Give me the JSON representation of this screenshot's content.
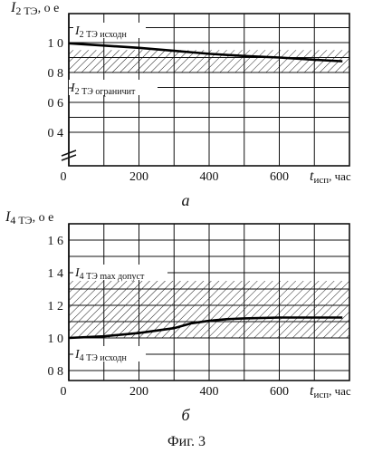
{
  "chart_data": [
    {
      "type": "line",
      "panel_label": "а",
      "ylabel": {
        "main": "I",
        "sub": "2 ТЭ",
        "suffix": ", о е"
      },
      "xlabel": {
        "main": "t",
        "sub": "исп",
        "suffix": ", час"
      },
      "xlim": [
        0,
        800
      ],
      "ylim": [
        0.2,
        1.0
      ],
      "xticks": [
        0,
        200,
        400,
        600
      ],
      "xtick_labels": [
        "0",
        "200",
        "400",
        "600"
      ],
      "yticks": [
        1.0,
        0.8,
        0.6,
        0.4
      ],
      "ytick_labels": [
        "1 0",
        "0 8",
        "0 6",
        "0 4"
      ],
      "axis_break": true,
      "hatched_band": [
        0.8,
        0.95
      ],
      "annotations": [
        {
          "main": "I",
          "sub": "2 ТЭ исходн"
        },
        {
          "main": "I",
          "sub": "2 ТЭ ограничит"
        }
      ],
      "series": [
        {
          "x": [
            0,
            100,
            200,
            300,
            400,
            500,
            600,
            700,
            780
          ],
          "y": [
            0.995,
            0.98,
            0.965,
            0.945,
            0.925,
            0.91,
            0.9,
            0.885,
            0.875
          ]
        }
      ]
    },
    {
      "type": "line",
      "panel_label": "б",
      "ylabel": {
        "main": "I",
        "sub": "4 ТЭ",
        "suffix": ", о е"
      },
      "xlabel": {
        "main": "t",
        "sub": "исп",
        "suffix": ", час"
      },
      "xlim": [
        0,
        800
      ],
      "ylim": [
        0.7,
        1.7
      ],
      "xticks": [
        0,
        200,
        400,
        600
      ],
      "xtick_labels": [
        "0",
        "200",
        "400",
        "600"
      ],
      "yticks": [
        1.6,
        1.4,
        1.2,
        1.0,
        0.8
      ],
      "ytick_labels": [
        "1 6",
        "1 4",
        "1 2",
        "1 0",
        "0 8"
      ],
      "axis_break": false,
      "hatched_band": [
        1.0,
        1.35
      ],
      "annotations": [
        {
          "main": "I",
          "sub": "4 ТЭ max допуст"
        },
        {
          "main": "I",
          "sub": "4 ТЭ исходн"
        }
      ],
      "series": [
        {
          "x": [
            0,
            100,
            200,
            300,
            350,
            400,
            450,
            500,
            600,
            700,
            780
          ],
          "y": [
            1.0,
            1.01,
            1.03,
            1.06,
            1.09,
            1.105,
            1.115,
            1.12,
            1.125,
            1.125,
            1.125
          ]
        }
      ]
    }
  ],
  "caption": "Фиг. 3"
}
